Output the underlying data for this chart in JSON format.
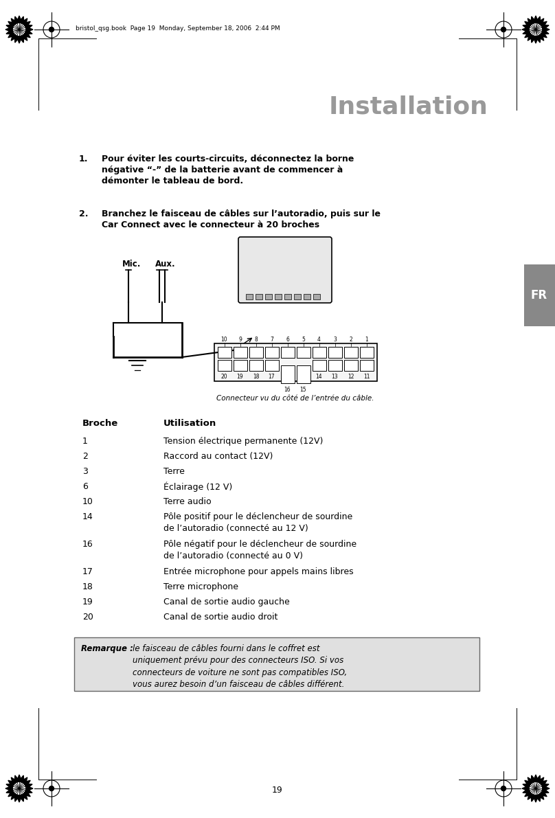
{
  "title": "Installation",
  "title_fontsize": 26,
  "title_color": "#999999",
  "page_bg": "#ffffff",
  "header_text": "bristol_qsg.book  Page 19  Monday, September 18, 2006  2:44 PM",
  "footer_page": "19",
  "fr_tab_text": "FR",
  "fr_tab_color": "#888888",
  "table_header_broche": "Broche",
  "table_header_utilisation": "Utilisation",
  "table_rows": [
    [
      "1",
      "Tension électrique permanente (12V)"
    ],
    [
      "2",
      "Raccord au contact (12V)"
    ],
    [
      "3",
      "Terre"
    ],
    [
      "6",
      "Éclairage (12 V)"
    ],
    [
      "10",
      "Terre audio"
    ],
    [
      "14",
      "Pôle positif pour le déclencheur de sourdine\nde l’autoradio (connecté au 12 V)"
    ],
    [
      "16",
      "Pôle négatif pour le déclencheur de sourdine\nde l’autoradio (connecté au 0 V)"
    ],
    [
      "17",
      "Entrée microphone pour appels mains libres"
    ],
    [
      "18",
      "Terre microphone"
    ],
    [
      "19",
      "Canal de sortie audio gauche"
    ],
    [
      "20",
      "Canal de sortie audio droit"
    ]
  ],
  "remark_bold": "Remarque : ",
  "remark_text": "le faisceau de câbles fourni dans le coffret est\nuniquement prévu pour des connecteurs ISO. Si vos\nconnecteurs de voiture ne sont pas compatibles ISO,\nvous aurez besoin d’un faisceau de câbles différent.",
  "remark_box_color": "#e0e0e0",
  "remark_border_color": "#666666",
  "connector_caption": "Connecteur vu du côté de l’entrée du câble.",
  "mic_label": "Mic.",
  "aux_label": "Aux."
}
